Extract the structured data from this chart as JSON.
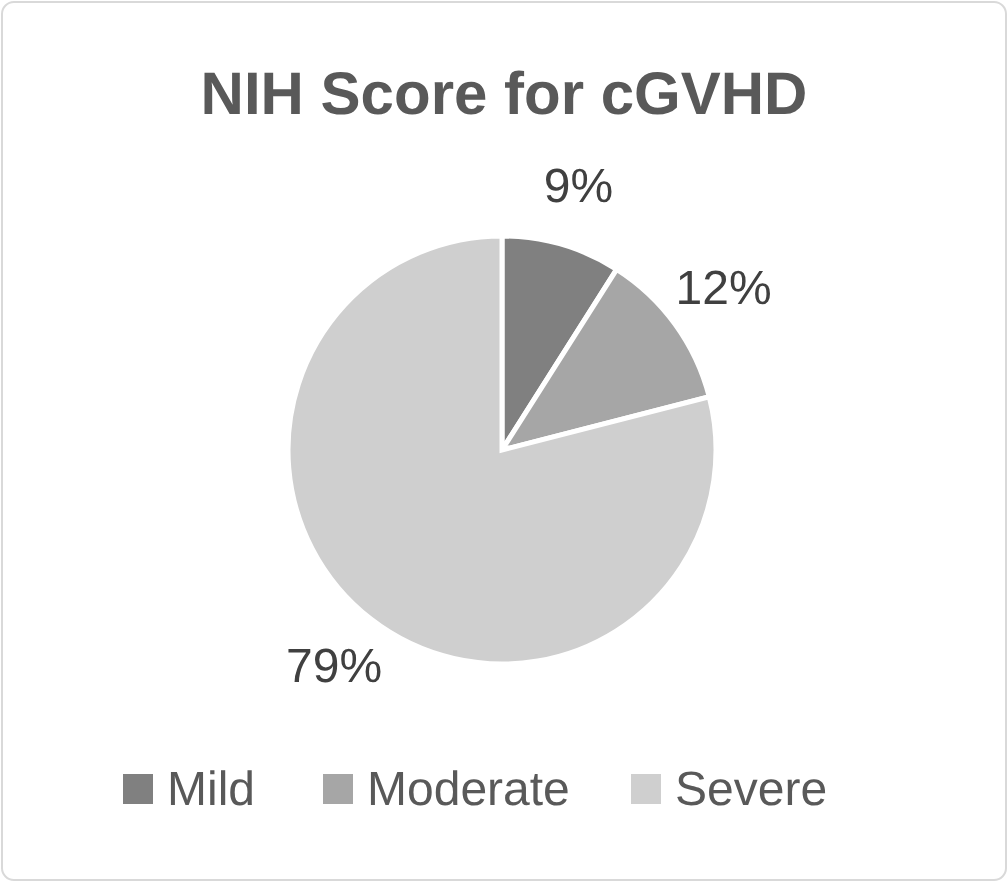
{
  "chart_data": {
    "type": "pie",
    "title": "NIH Score for cGVHD",
    "categories": [
      "Mild",
      "Moderate",
      "Severe"
    ],
    "values": [
      9,
      12,
      79
    ],
    "colors": [
      "#808080",
      "#a6a6a6",
      "#cfcfcf"
    ],
    "value_labels": [
      "9%",
      "12%",
      "79%"
    ],
    "legend": "bottom"
  }
}
